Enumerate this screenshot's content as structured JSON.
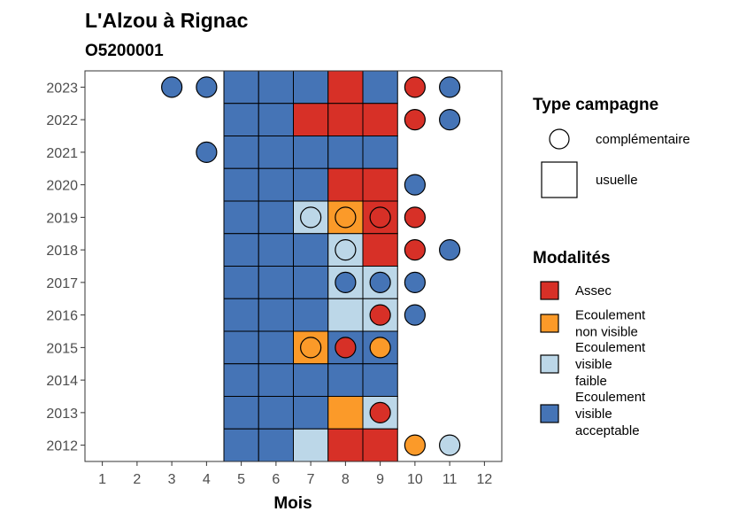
{
  "chart_data": {
    "type": "heatmap",
    "title": "L'Alzou à Rignac",
    "subtitle": "O5200001",
    "xlabel": "Mois",
    "ylabel": "",
    "x_ticks": [
      "1",
      "2",
      "3",
      "4",
      "5",
      "6",
      "7",
      "8",
      "9",
      "10",
      "11",
      "12"
    ],
    "y_ticks": [
      "2012",
      "2013",
      "2014",
      "2015",
      "2016",
      "2017",
      "2018",
      "2019",
      "2020",
      "2021",
      "2022",
      "2023"
    ],
    "legend_type": {
      "title": "Type campagne",
      "items": [
        {
          "key": "complementaire",
          "label": "complémentaire",
          "shape": "circle"
        },
        {
          "key": "usuelle",
          "label": "usuelle",
          "shape": "square"
        }
      ]
    },
    "legend_modalites": {
      "title": "Modalités",
      "items": [
        {
          "key": "assec",
          "lines": [
            "Assec"
          ],
          "color": "#d73027"
        },
        {
          "key": "ecoul_non_visible",
          "lines": [
            "Ecoulement",
            "non visible"
          ],
          "color": "#fb9a29"
        },
        {
          "key": "ecoul_faible",
          "lines": [
            "Ecoulement",
            "visible",
            "faible"
          ],
          "color": "#bcd7e8"
        },
        {
          "key": "ecoul_acceptable",
          "lines": [
            "Ecoulement",
            "visible",
            "acceptable"
          ],
          "color": "#4574b6"
        }
      ]
    },
    "tiles": [
      {
        "year": 2023,
        "month": 5,
        "m": "ecoul_acceptable"
      },
      {
        "year": 2023,
        "month": 6,
        "m": "ecoul_acceptable"
      },
      {
        "year": 2023,
        "month": 7,
        "m": "ecoul_acceptable"
      },
      {
        "year": 2023,
        "month": 8,
        "m": "assec"
      },
      {
        "year": 2023,
        "month": 9,
        "m": "ecoul_acceptable"
      },
      {
        "year": 2022,
        "month": 5,
        "m": "ecoul_acceptable"
      },
      {
        "year": 2022,
        "month": 6,
        "m": "ecoul_acceptable"
      },
      {
        "year": 2022,
        "month": 7,
        "m": "assec"
      },
      {
        "year": 2022,
        "month": 8,
        "m": "assec"
      },
      {
        "year": 2022,
        "month": 9,
        "m": "assec"
      },
      {
        "year": 2021,
        "month": 5,
        "m": "ecoul_acceptable"
      },
      {
        "year": 2021,
        "month": 6,
        "m": "ecoul_acceptable"
      },
      {
        "year": 2021,
        "month": 7,
        "m": "ecoul_acceptable"
      },
      {
        "year": 2021,
        "month": 8,
        "m": "ecoul_acceptable"
      },
      {
        "year": 2021,
        "month": 9,
        "m": "ecoul_acceptable"
      },
      {
        "year": 2020,
        "month": 5,
        "m": "ecoul_acceptable"
      },
      {
        "year": 2020,
        "month": 6,
        "m": "ecoul_acceptable"
      },
      {
        "year": 2020,
        "month": 7,
        "m": "ecoul_acceptable"
      },
      {
        "year": 2020,
        "month": 8,
        "m": "assec"
      },
      {
        "year": 2020,
        "month": 9,
        "m": "assec"
      },
      {
        "year": 2019,
        "month": 5,
        "m": "ecoul_acceptable"
      },
      {
        "year": 2019,
        "month": 6,
        "m": "ecoul_acceptable"
      },
      {
        "year": 2019,
        "month": 7,
        "m": "ecoul_faible"
      },
      {
        "year": 2019,
        "month": 8,
        "m": "ecoul_non_visible"
      },
      {
        "year": 2019,
        "month": 9,
        "m": "assec"
      },
      {
        "year": 2018,
        "month": 5,
        "m": "ecoul_acceptable"
      },
      {
        "year": 2018,
        "month": 6,
        "m": "ecoul_acceptable"
      },
      {
        "year": 2018,
        "month": 7,
        "m": "ecoul_acceptable"
      },
      {
        "year": 2018,
        "month": 8,
        "m": "ecoul_faible"
      },
      {
        "year": 2018,
        "month": 9,
        "m": "assec"
      },
      {
        "year": 2017,
        "month": 5,
        "m": "ecoul_acceptable"
      },
      {
        "year": 2017,
        "month": 6,
        "m": "ecoul_acceptable"
      },
      {
        "year": 2017,
        "month": 7,
        "m": "ecoul_acceptable"
      },
      {
        "year": 2017,
        "month": 8,
        "m": "ecoul_faible"
      },
      {
        "year": 2017,
        "month": 9,
        "m": "ecoul_faible"
      },
      {
        "year": 2016,
        "month": 5,
        "m": "ecoul_acceptable"
      },
      {
        "year": 2016,
        "month": 6,
        "m": "ecoul_acceptable"
      },
      {
        "year": 2016,
        "month": 7,
        "m": "ecoul_acceptable"
      },
      {
        "year": 2016,
        "month": 8,
        "m": "ecoul_faible"
      },
      {
        "year": 2016,
        "month": 9,
        "m": "ecoul_faible"
      },
      {
        "year": 2015,
        "month": 5,
        "m": "ecoul_acceptable"
      },
      {
        "year": 2015,
        "month": 6,
        "m": "ecoul_acceptable"
      },
      {
        "year": 2015,
        "month": 7,
        "m": "ecoul_non_visible"
      },
      {
        "year": 2015,
        "month": 8,
        "m": "ecoul_acceptable"
      },
      {
        "year": 2015,
        "month": 9,
        "m": "ecoul_acceptable"
      },
      {
        "year": 2014,
        "month": 5,
        "m": "ecoul_acceptable"
      },
      {
        "year": 2014,
        "month": 6,
        "m": "ecoul_acceptable"
      },
      {
        "year": 2014,
        "month": 7,
        "m": "ecoul_acceptable"
      },
      {
        "year": 2014,
        "month": 8,
        "m": "ecoul_acceptable"
      },
      {
        "year": 2014,
        "month": 9,
        "m": "ecoul_acceptable"
      },
      {
        "year": 2013,
        "month": 5,
        "m": "ecoul_acceptable"
      },
      {
        "year": 2013,
        "month": 6,
        "m": "ecoul_acceptable"
      },
      {
        "year": 2013,
        "month": 7,
        "m": "ecoul_acceptable"
      },
      {
        "year": 2013,
        "month": 8,
        "m": "ecoul_non_visible"
      },
      {
        "year": 2013,
        "month": 9,
        "m": "ecoul_faible"
      },
      {
        "year": 2012,
        "month": 5,
        "m": "ecoul_acceptable"
      },
      {
        "year": 2012,
        "month": 6,
        "m": "ecoul_acceptable"
      },
      {
        "year": 2012,
        "month": 7,
        "m": "ecoul_faible"
      },
      {
        "year": 2012,
        "month": 8,
        "m": "assec"
      },
      {
        "year": 2012,
        "month": 9,
        "m": "assec"
      }
    ],
    "points": [
      {
        "year": 2023,
        "month": 3,
        "m": "ecoul_acceptable"
      },
      {
        "year": 2023,
        "month": 4,
        "m": "ecoul_acceptable"
      },
      {
        "year": 2023,
        "month": 10,
        "m": "assec"
      },
      {
        "year": 2023,
        "month": 11,
        "m": "ecoul_acceptable"
      },
      {
        "year": 2022,
        "month": 10,
        "m": "assec"
      },
      {
        "year": 2022,
        "month": 11,
        "m": "ecoul_acceptable"
      },
      {
        "year": 2021,
        "month": 4,
        "m": "ecoul_acceptable"
      },
      {
        "year": 2020,
        "month": 10,
        "m": "ecoul_acceptable"
      },
      {
        "year": 2019,
        "month": 7,
        "m": "ecoul_faible"
      },
      {
        "year": 2019,
        "month": 8,
        "m": "ecoul_non_visible"
      },
      {
        "year": 2019,
        "month": 9,
        "m": "assec"
      },
      {
        "year": 2019,
        "month": 10,
        "m": "assec"
      },
      {
        "year": 2018,
        "month": 8,
        "m": "ecoul_faible"
      },
      {
        "year": 2018,
        "month": 10,
        "m": "assec"
      },
      {
        "year": 2018,
        "month": 11,
        "m": "ecoul_acceptable"
      },
      {
        "year": 2017,
        "month": 8,
        "m": "ecoul_acceptable"
      },
      {
        "year": 2017,
        "month": 9,
        "m": "ecoul_acceptable"
      },
      {
        "year": 2017,
        "month": 10,
        "m": "ecoul_acceptable"
      },
      {
        "year": 2016,
        "month": 9,
        "m": "assec"
      },
      {
        "year": 2016,
        "month": 10,
        "m": "ecoul_acceptable"
      },
      {
        "year": 2015,
        "month": 7,
        "m": "ecoul_non_visible"
      },
      {
        "year": 2015,
        "month": 8,
        "m": "assec"
      },
      {
        "year": 2015,
        "month": 9,
        "m": "ecoul_non_visible"
      },
      {
        "year": 2013,
        "month": 9,
        "m": "assec"
      },
      {
        "year": 2012,
        "month": 10,
        "m": "ecoul_non_visible"
      },
      {
        "year": 2012,
        "month": 11,
        "m": "ecoul_faible"
      }
    ],
    "grid": false
  }
}
